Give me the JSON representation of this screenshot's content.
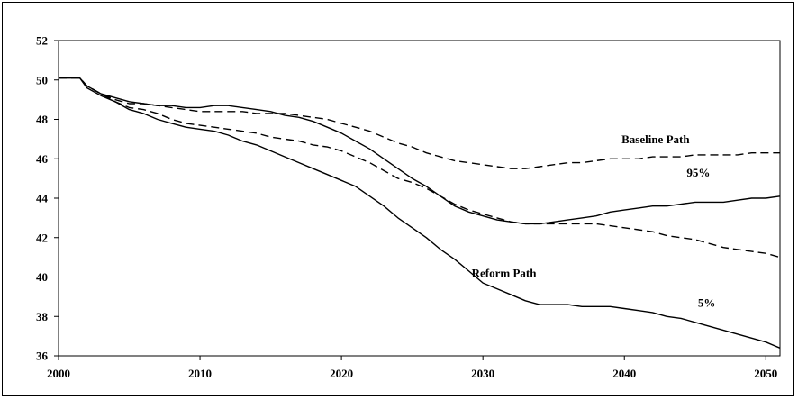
{
  "chart_data": {
    "type": "line",
    "title": "",
    "xlabel": "",
    "ylabel": "",
    "xlim": [
      2000,
      2051
    ],
    "ylim": [
      36,
      52
    ],
    "x_ticks": [
      2000,
      2010,
      2020,
      2030,
      2040,
      2050
    ],
    "y_ticks": [
      36,
      38,
      40,
      42,
      44,
      46,
      48,
      50,
      52
    ],
    "grid": false,
    "legend": "none",
    "annotations": [
      {
        "text": "Baseline Path",
        "x": 2039.8,
        "y": 46.8
      },
      {
        "text": "95%",
        "x": 2044.4,
        "y": 45.1
      },
      {
        "text": "Reform Path",
        "x": 2029.2,
        "y": 40.0
      },
      {
        "text": "5%",
        "x": 2045.2,
        "y": 38.5
      }
    ],
    "series": [
      {
        "style": "solid",
        "x": [
          2000,
          2001,
          2001.5,
          2002,
          2003,
          2004,
          2005,
          2006,
          2007,
          2008,
          2009,
          2010,
          2011,
          2012,
          2013,
          2014,
          2015,
          2016,
          2017,
          2018,
          2019,
          2020,
          2021,
          2022,
          2023,
          2024,
          2025,
          2026,
          2027,
          2028,
          2029,
          2030,
          2031,
          2032,
          2033,
          2034,
          2035,
          2036,
          2037,
          2038,
          2039,
          2040,
          2041,
          2042,
          2043,
          2044,
          2045,
          2046,
          2047,
          2048,
          2049,
          2050,
          2051
        ],
        "y": [
          50.1,
          50.1,
          50.1,
          49.7,
          49.3,
          49.1,
          48.9,
          48.8,
          48.7,
          48.7,
          48.6,
          48.6,
          48.7,
          48.7,
          48.6,
          48.5,
          48.4,
          48.2,
          48.1,
          47.9,
          47.6,
          47.3,
          46.9,
          46.5,
          46.0,
          45.5,
          45.0,
          44.6,
          44.1,
          43.6,
          43.3,
          43.1,
          42.9,
          42.8,
          42.7,
          42.7,
          42.8,
          42.9,
          43.0,
          43.1,
          43.3,
          43.4,
          43.5,
          43.6,
          43.6,
          43.7,
          43.8,
          43.8,
          43.8,
          43.9,
          44.0,
          44.0,
          44.1
        ]
      },
      {
        "style": "solid",
        "x": [
          2000,
          2001,
          2001.5,
          2002,
          2003,
          2004,
          2005,
          2006,
          2007,
          2008,
          2009,
          2010,
          2011,
          2012,
          2013,
          2014,
          2015,
          2016,
          2017,
          2018,
          2019,
          2020,
          2021,
          2022,
          2023,
          2024,
          2025,
          2026,
          2027,
          2028,
          2029,
          2030,
          2031,
          2032,
          2033,
          2034,
          2035,
          2036,
          2037,
          2038,
          2039,
          2040,
          2041,
          2042,
          2043,
          2044,
          2045,
          2046,
          2047,
          2048,
          2049,
          2050,
          2051
        ],
        "y": [
          50.1,
          50.1,
          50.1,
          49.6,
          49.2,
          48.9,
          48.5,
          48.3,
          48.0,
          47.8,
          47.6,
          47.5,
          47.4,
          47.2,
          46.9,
          46.7,
          46.4,
          46.1,
          45.8,
          45.5,
          45.2,
          44.9,
          44.6,
          44.1,
          43.6,
          43.0,
          42.5,
          42.0,
          41.4,
          40.9,
          40.3,
          39.7,
          39.4,
          39.1,
          38.8,
          38.6,
          38.6,
          38.6,
          38.5,
          38.5,
          38.5,
          38.4,
          38.3,
          38.2,
          38.0,
          37.9,
          37.7,
          37.5,
          37.3,
          37.1,
          36.9,
          36.7,
          36.4
        ]
      },
      {
        "style": "dashed",
        "x": [
          2000,
          2001,
          2001.5,
          2002,
          2003,
          2004,
          2005,
          2006,
          2007,
          2008,
          2009,
          2010,
          2011,
          2012,
          2013,
          2014,
          2015,
          2016,
          2017,
          2018,
          2019,
          2020,
          2021,
          2022,
          2023,
          2024,
          2025,
          2026,
          2027,
          2028,
          2029,
          2030,
          2031,
          2032,
          2033,
          2034,
          2035,
          2036,
          2037,
          2038,
          2039,
          2040,
          2041,
          2042,
          2043,
          2044,
          2045,
          2046,
          2047,
          2048,
          2049,
          2050,
          2051
        ],
        "y": [
          50.1,
          50.1,
          50.1,
          49.7,
          49.3,
          49.0,
          48.8,
          48.8,
          48.7,
          48.6,
          48.5,
          48.4,
          48.4,
          48.4,
          48.4,
          48.3,
          48.3,
          48.3,
          48.2,
          48.1,
          48.0,
          47.8,
          47.6,
          47.4,
          47.1,
          46.8,
          46.6,
          46.3,
          46.1,
          45.9,
          45.8,
          45.7,
          45.6,
          45.5,
          45.5,
          45.6,
          45.7,
          45.8,
          45.8,
          45.9,
          46.0,
          46.0,
          46.0,
          46.1,
          46.1,
          46.1,
          46.2,
          46.2,
          46.2,
          46.2,
          46.3,
          46.3,
          46.3
        ]
      },
      {
        "style": "dashed",
        "x": [
          2000,
          2001,
          2001.5,
          2002,
          2003,
          2004,
          2005,
          2006,
          2007,
          2008,
          2009,
          2010,
          2011,
          2012,
          2013,
          2014,
          2015,
          2016,
          2017,
          2018,
          2019,
          2020,
          2021,
          2022,
          2023,
          2024,
          2025,
          2026,
          2027,
          2028,
          2029,
          2030,
          2031,
          2032,
          2033,
          2034,
          2035,
          2036,
          2037,
          2038,
          2039,
          2040,
          2041,
          2042,
          2043,
          2044,
          2045,
          2046,
          2047,
          2048,
          2049,
          2050,
          2051
        ],
        "y": [
          50.1,
          50.1,
          50.1,
          49.7,
          49.3,
          48.9,
          48.6,
          48.5,
          48.3,
          48.0,
          47.8,
          47.7,
          47.6,
          47.5,
          47.4,
          47.3,
          47.1,
          47.0,
          46.9,
          46.7,
          46.6,
          46.4,
          46.1,
          45.8,
          45.4,
          45.0,
          44.8,
          44.5,
          44.1,
          43.7,
          43.4,
          43.2,
          43.0,
          42.8,
          42.7,
          42.7,
          42.7,
          42.7,
          42.7,
          42.7,
          42.6,
          42.5,
          42.4,
          42.3,
          42.1,
          42.0,
          41.9,
          41.7,
          41.5,
          41.4,
          41.3,
          41.2,
          41.0
        ]
      }
    ]
  }
}
